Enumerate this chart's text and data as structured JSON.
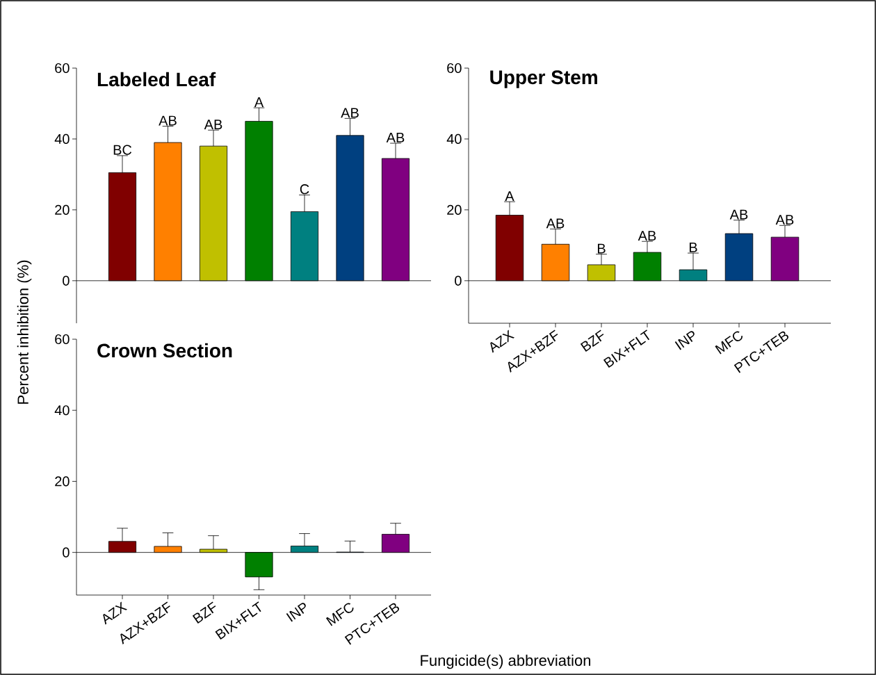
{
  "chart_data": [
    {
      "type": "bar",
      "title": "Labeled Leaf",
      "ylabel": "Percent inhibition (%)",
      "categories": [
        "AZX",
        "AZX+BZF",
        "BZF",
        "BIX+FLT",
        "INP",
        "MFC",
        "PTC+TEB"
      ],
      "values": [
        30.5,
        39,
        38,
        45,
        19.5,
        41,
        34.5
      ],
      "colors": [
        "#800000",
        "#ff8000",
        "#c0c000",
        "#008000",
        "#008080",
        "#004080",
        "#800080"
      ],
      "errors": [
        [
          30.5,
          35.3
        ],
        [
          39,
          43.6
        ],
        [
          38,
          42.5
        ],
        [
          45,
          48.8
        ],
        [
          19.5,
          24.2
        ],
        [
          41,
          45.8
        ],
        [
          34.5,
          38.8
        ]
      ],
      "annotations": [
        {
          "text": "BC",
          "x": "AZX",
          "y": 35.3
        },
        {
          "text": "AB",
          "x": "AZX+BZF",
          "y": 43.6
        },
        {
          "text": "AB",
          "x": "BZF",
          "y": 42.5
        },
        {
          "text": "A",
          "x": "BIX+FLT",
          "y": 48.8
        },
        {
          "text": "C",
          "x": "INP",
          "y": 24.2
        },
        {
          "text": "AB",
          "x": "MFC",
          "y": 45.8
        },
        {
          "text": "AB",
          "x": "PTC+TEB",
          "y": 38.8
        }
      ],
      "ylim": [
        -12,
        60
      ],
      "yticks": [
        0,
        20,
        40,
        60
      ],
      "tick_labels": "y"
    },
    {
      "type": "bar",
      "title": "Upper Stem",
      "categories": [
        "AZX",
        "AZX+BZF",
        "BZF",
        "BIX+FLT",
        "INP",
        "MFC",
        "PTC+TEB"
      ],
      "values": [
        18.5,
        10.3,
        4.5,
        8,
        3.1,
        13.3,
        12.3
      ],
      "colors": [
        "#800000",
        "#ff8000",
        "#c0c000",
        "#008000",
        "#008080",
        "#004080",
        "#800080"
      ],
      "errors": [
        [
          18.5,
          22.3
        ],
        [
          10.3,
          14.6
        ],
        [
          4.5,
          7.5
        ],
        [
          8,
          11.1
        ],
        [
          3.1,
          7.8
        ],
        [
          13.3,
          17.1
        ],
        [
          12.3,
          15.6
        ]
      ],
      "annotations": [
        {
          "text": "A",
          "x": "AZX",
          "y": 22.3
        },
        {
          "text": "AB",
          "x": "AZX+BZF",
          "y": 14.6
        },
        {
          "text": "B",
          "x": "BZF",
          "y": 7.5
        },
        {
          "text": "AB",
          "x": "BIX+FLT",
          "y": 11.1
        },
        {
          "text": "B",
          "x": "INP",
          "y": 7.8
        },
        {
          "text": "AB",
          "x": "MFC",
          "y": 17.1
        },
        {
          "text": "AB",
          "x": "PTC+TEB",
          "y": 15.6
        }
      ],
      "ylim": [
        -12,
        60
      ],
      "yticks": [
        0,
        20,
        40,
        60
      ]
    },
    {
      "type": "bar",
      "title": "Crown Section",
      "xlabel": "Fungicide(s) abbreviation",
      "categories": [
        "AZX",
        "AZX+BZF",
        "BZF",
        "BIX+FLT",
        "INP",
        "MFC",
        "PTC+TEB"
      ],
      "values": [
        3.1,
        1.7,
        0.9,
        -6.9,
        1.8,
        0.1,
        5.1
      ],
      "colors": [
        "#800000",
        "#ff8000",
        "#c0c000",
        "#008000",
        "#008080",
        "#004080",
        "#800080"
      ],
      "errors": [
        [
          3.1,
          6.8
        ],
        [
          1.7,
          5.5
        ],
        [
          0.9,
          4.7
        ],
        [
          -10.5,
          -6.9
        ],
        [
          1.8,
          5.3
        ],
        [
          0.1,
          3.2
        ],
        [
          5.1,
          8.2
        ]
      ],
      "ylim": [
        -12,
        60
      ],
      "yticks": [
        0,
        20,
        40,
        60
      ]
    }
  ]
}
